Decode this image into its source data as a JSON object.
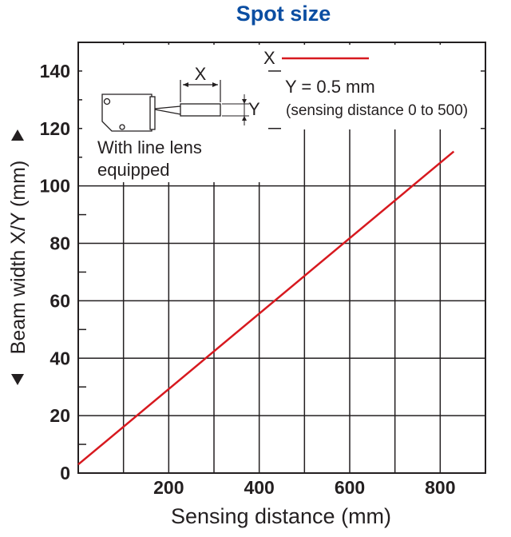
{
  "chart_data": {
    "type": "line",
    "title": "Spot size",
    "xlabel": "Sensing distance (mm)",
    "ylabel": "Beam width X/Y (mm)",
    "xlim": [
      0,
      900
    ],
    "ylim": [
      0,
      150
    ],
    "x_ticks": [
      200,
      400,
      600,
      800
    ],
    "y_ticks": [
      0,
      20,
      40,
      60,
      80,
      100,
      120,
      140
    ],
    "grid": true,
    "series": [
      {
        "name": "X",
        "color": "#d7191f",
        "x": [
          0,
          830
        ],
        "y": [
          3,
          112
        ]
      }
    ],
    "annotations": {
      "series_y": "Y = 0.5 mm",
      "series_y_note": "(sensing distance 0 to 500)",
      "lens_line1": "With line lens",
      "lens_line2": "equipped",
      "dim_x": "X",
      "dim_y": "Y"
    }
  }
}
